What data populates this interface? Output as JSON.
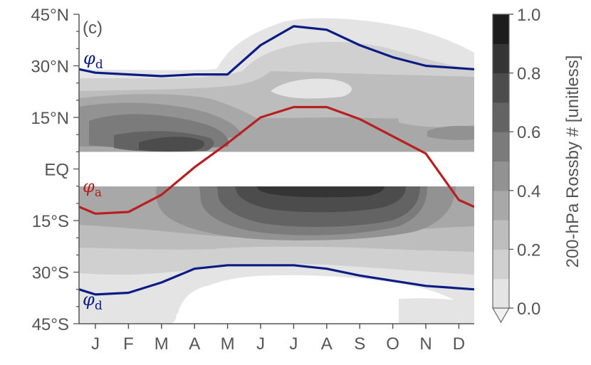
{
  "chart_data": {
    "type": "contour",
    "panel_label": "(c)",
    "x_ticks": [
      "J",
      "F",
      "M",
      "A",
      "M",
      "J",
      "J",
      "A",
      "S",
      "O",
      "N",
      "D"
    ],
    "y_ticks": [
      "45°N",
      "30°N",
      "15°N",
      "EQ",
      "15°S",
      "30°S",
      "45°S"
    ],
    "y_tick_values": [
      45,
      30,
      15,
      0,
      -15,
      -30,
      -45
    ],
    "ylim": [
      -45,
      45
    ],
    "masked_band": [
      -5,
      5
    ],
    "colorbar": {
      "label": "200-hPa Rossby # [unitless]",
      "ticks": [
        "0.0",
        "0.2",
        "0.4",
        "0.6",
        "0.8",
        "1.0"
      ],
      "tick_values": [
        0,
        0.2,
        0.4,
        0.6,
        0.8,
        1.0
      ],
      "levels": [
        0,
        0.1,
        0.2,
        0.3,
        0.4,
        0.5,
        0.6,
        0.7,
        0.8,
        0.9,
        1.0
      ],
      "extend": "min",
      "colors": [
        "#e4e4e4",
        "#d0d0d0",
        "#bdbdbd",
        "#a8a8a8",
        "#929292",
        "#7b7b7b",
        "#636363",
        "#4c4c4c",
        "#353535",
        "#1c1c1c"
      ]
    },
    "series": [
      {
        "name": "φd",
        "color": "#0b1c84",
        "values": [
          29,
          28,
          27.5,
          27,
          27.5,
          27.5,
          36,
          41.5,
          40.5,
          36,
          32.5,
          30,
          29
        ]
      },
      {
        "name": "φa",
        "color": "#b81f1f",
        "values": [
          -11,
          -13,
          -12.5,
          -7.5,
          0.5,
          7.5,
          15,
          18,
          18,
          14.5,
          9.5,
          4.5,
          -9,
          -11
        ]
      },
      {
        "name": "φd",
        "color": "#0b1c84",
        "values": [
          -35,
          -36.5,
          -36,
          -33,
          -29,
          -28,
          -28,
          -28,
          -29,
          -31,
          -32.5,
          -34,
          -35
        ]
      }
    ],
    "contours_nh": [
      {
        "level": 0.1,
        "rows": [
          [
            0,
            0,
            0,
            0,
            0,
            0,
            0,
            0,
            0,
            0,
            0,
            0
          ],
          [
            0,
            0,
            0,
            0,
            0.05,
            0.1,
            0.12,
            0.14,
            0.1,
            0.06,
            0.03,
            0.01
          ],
          [
            0.12,
            0.12,
            0.11,
            0.1,
            0.12,
            0.15,
            0.17,
            0.18,
            0.16,
            0.14,
            0.13,
            0.12
          ],
          [
            0.3,
            0.32,
            0.32,
            0.3,
            0.25,
            0.2,
            0.18,
            0.17,
            0.2,
            0.22,
            0.25,
            0.28
          ],
          [
            0.44,
            0.48,
            0.5,
            0.48,
            0.4,
            0.3,
            0.25,
            0.22,
            0.22,
            0.28,
            0.32,
            0.38
          ],
          [
            0.5,
            0.6,
            0.68,
            0.62,
            0.48,
            0.32,
            0.25,
            0.22,
            0.22,
            0.28,
            0.36,
            0.42
          ],
          [
            0.5,
            0.6,
            0.7,
            0.62,
            0.5,
            0.34,
            0.28,
            0.26,
            0.26,
            0.3,
            0.36,
            0.42
          ]
        ]
      },
      {
        "level": 0.2,
        "rows": []
      }
    ],
    "contours_sh": [
      {
        "level": 0.1,
        "rows": []
      }
    ]
  }
}
